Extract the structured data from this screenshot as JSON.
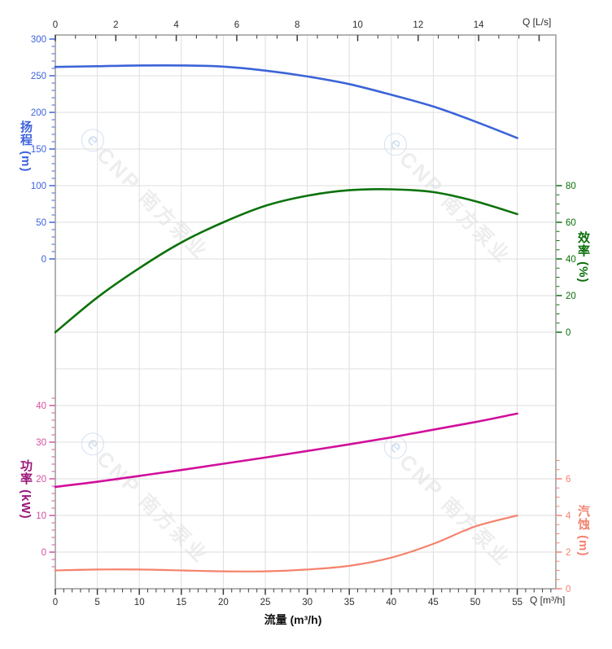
{
  "app": {
    "type": "pump-performance-curve-sheet"
  },
  "watermark": {
    "logo_glyph": "ⓔ",
    "brand": "CNP",
    "company": "南方泵业"
  },
  "axes": {
    "top": {
      "unit_label": "Q [L/s]",
      "tick_labels": [
        0,
        2,
        4,
        6,
        8,
        10,
        12,
        14
      ],
      "color": "#3a3a3a"
    },
    "bottom": {
      "unit_label": "Q [m³/h]",
      "axis_title": "流量 (m³/h)",
      "tick_labels": [
        0,
        5,
        10,
        15,
        20,
        25,
        30,
        35,
        40,
        45,
        50,
        55
      ],
      "color": "#3a3a3a"
    },
    "head": {
      "title": "扬程 (m)",
      "tick_labels": [
        300,
        250,
        200,
        150,
        100,
        50,
        0
      ],
      "color": "#3e62dc"
    },
    "efficiency": {
      "title": "效率 (%)",
      "tick_labels": [
        80,
        60,
        40,
        20,
        0
      ],
      "color": "#0a6f0a"
    },
    "power": {
      "title": "功率 (kW)",
      "tick_labels": [
        40,
        30,
        20,
        10,
        0
      ],
      "title_color": "#9b1779",
      "color": "#d44fa0"
    },
    "npsh": {
      "title": "汽蚀 (m)",
      "tick_labels": [
        6,
        4,
        2,
        0
      ],
      "color": "#f58270"
    }
  },
  "chart_data": {
    "type": "line",
    "title": "",
    "xlabel": "流量 (m³/h)",
    "x_units": [
      "m³/h",
      "L/s"
    ],
    "grid": true,
    "x_m3h": [
      0,
      5,
      10,
      15,
      20,
      25,
      30,
      35,
      40,
      45,
      50,
      55
    ],
    "axis_ranges": {
      "flow_m3h": [
        0,
        55
      ],
      "flow_ls": [
        0,
        14
      ],
      "head_m": [
        0,
        300
      ],
      "efficiency_pct": [
        0,
        80
      ],
      "power_kw": [
        0,
        40
      ],
      "npsh_m": [
        0,
        6
      ]
    },
    "series": [
      {
        "id": "head",
        "name": "扬程",
        "unit": "m",
        "axis": "head",
        "color": "#3c64d8",
        "width": 2.6,
        "values": [
          262,
          263,
          264,
          264,
          262.5,
          257,
          249,
          238.5,
          224,
          208,
          187.5,
          165
        ]
      },
      {
        "id": "efficiency",
        "name": "效率",
        "unit": "%",
        "axis": "efficiency",
        "color": "#0b720b",
        "width": 2.6,
        "values": [
          0,
          19,
          35,
          49,
          60,
          69,
          74.5,
          77.5,
          78,
          76.5,
          71.5,
          64.5
        ]
      },
      {
        "id": "power",
        "name": "功率",
        "unit": "kW",
        "axis": "power",
        "color": "#d10f9b",
        "width": 2.6,
        "values": [
          17.8,
          19.2,
          20.8,
          22.4,
          24.1,
          25.8,
          27.6,
          29.4,
          31.3,
          33.4,
          35.5,
          37.8
        ]
      },
      {
        "id": "npsh",
        "name": "汽蚀",
        "unit": "m",
        "axis": "npsh",
        "color": "#f5826c",
        "width": 2.2,
        "values": [
          1.0,
          1.05,
          1.05,
          1.0,
          0.95,
          0.95,
          1.05,
          1.25,
          1.7,
          2.45,
          3.4,
          4.0
        ]
      }
    ]
  }
}
